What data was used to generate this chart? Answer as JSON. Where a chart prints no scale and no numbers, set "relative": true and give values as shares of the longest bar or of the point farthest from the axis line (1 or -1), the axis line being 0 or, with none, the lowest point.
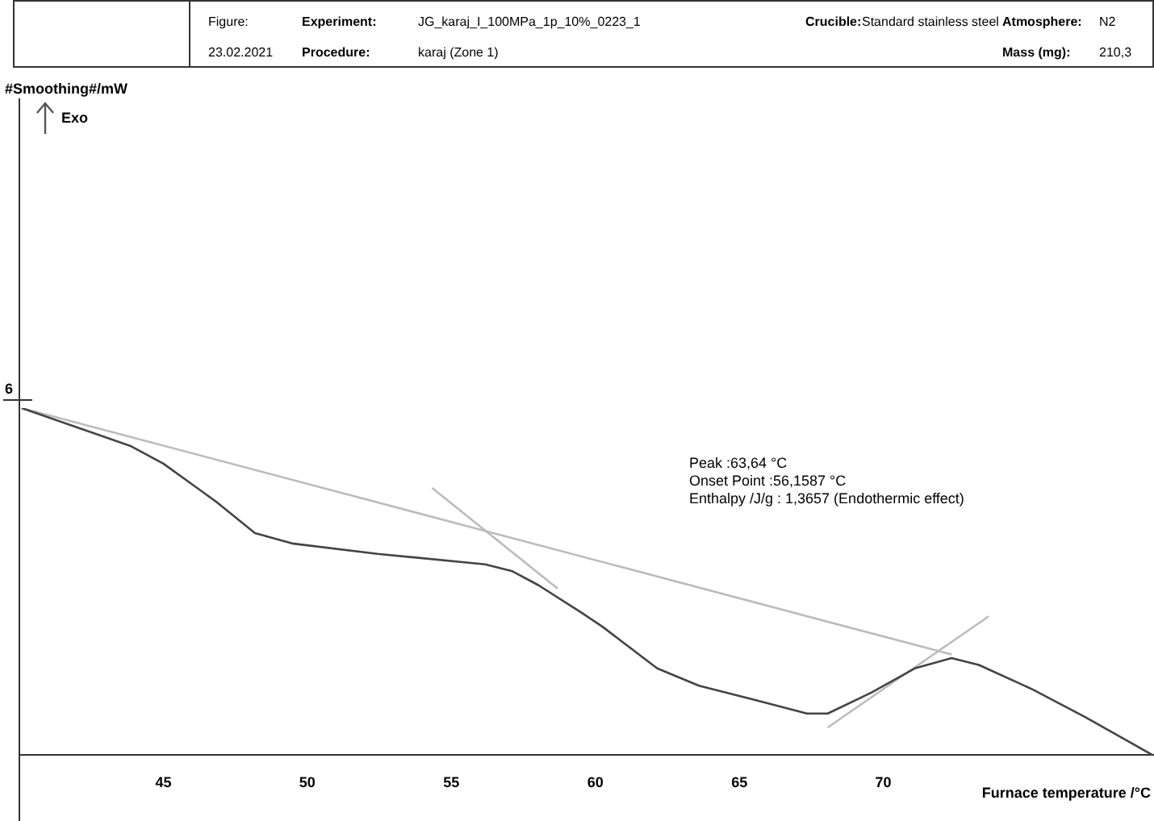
{
  "chart_data": {
    "type": "line",
    "relative": true,
    "xlabel": "Furnace temperature /°C",
    "xlim": [
      40,
      79.4
    ],
    "xticks": [
      45,
      50,
      55,
      60,
      65,
      70
    ],
    "grid": false,
    "legend": false,
    "marker": "none",
    "line_style": "solid",
    "annotations": [
      "Figure:",
      "Experiment:",
      "JG_karaj_I_100MPa_1p_10%_0223_1",
      "Crucible:",
      "Standard stainless steel",
      "Atmosphere:",
      "N2",
      "23.02.2021",
      "Procedure:",
      "karaj (Zone 1)",
      "Mass (mg):",
      "210,3",
      "Exo",
      "6",
      "Peak :63,64 °C",
      "Onset Point :56,1587 °C",
      "Enthalpy /J/g : 1,3657 (Endothermic effect)",
      "#Smoothing#/mW"
    ],
    "series": [
      {
        "color": "#444444",
        "x": [
          40.08,
          43.88,
          45.0,
          46.84,
          48.18,
          49.47,
          52.43,
          56.17,
          57.12,
          58.02,
          59.53,
          60.25,
          62.15,
          63.6,
          65.5,
          67.35,
          68.07,
          69.58,
          71.09,
          72.37,
          73.32,
          75.17,
          77.01,
          79.36
        ],
        "values": [
          1.0,
          0.89,
          0.84,
          0.73,
          0.64,
          0.61,
          0.58,
          0.55,
          0.53,
          0.49,
          0.41,
          0.37,
          0.25,
          0.2,
          0.16,
          0.12,
          0.12,
          0.18,
          0.25,
          0.28,
          0.26,
          0.19,
          0.11,
          0
        ]
      },
      {
        "color": "#bbbbbb",
        "x": [
          40.08,
          72.37
        ],
        "values": [
          1.0,
          0.29
        ]
      },
      {
        "color": "#bbbbbb",
        "x": [
          54.33,
          58.69
        ],
        "values": [
          0.77,
          0.48
        ]
      },
      {
        "color": "#bbbbbb",
        "x": [
          68.07,
          73.66
        ],
        "values": [
          0.08,
          0.4
        ]
      }
    ]
  }
}
